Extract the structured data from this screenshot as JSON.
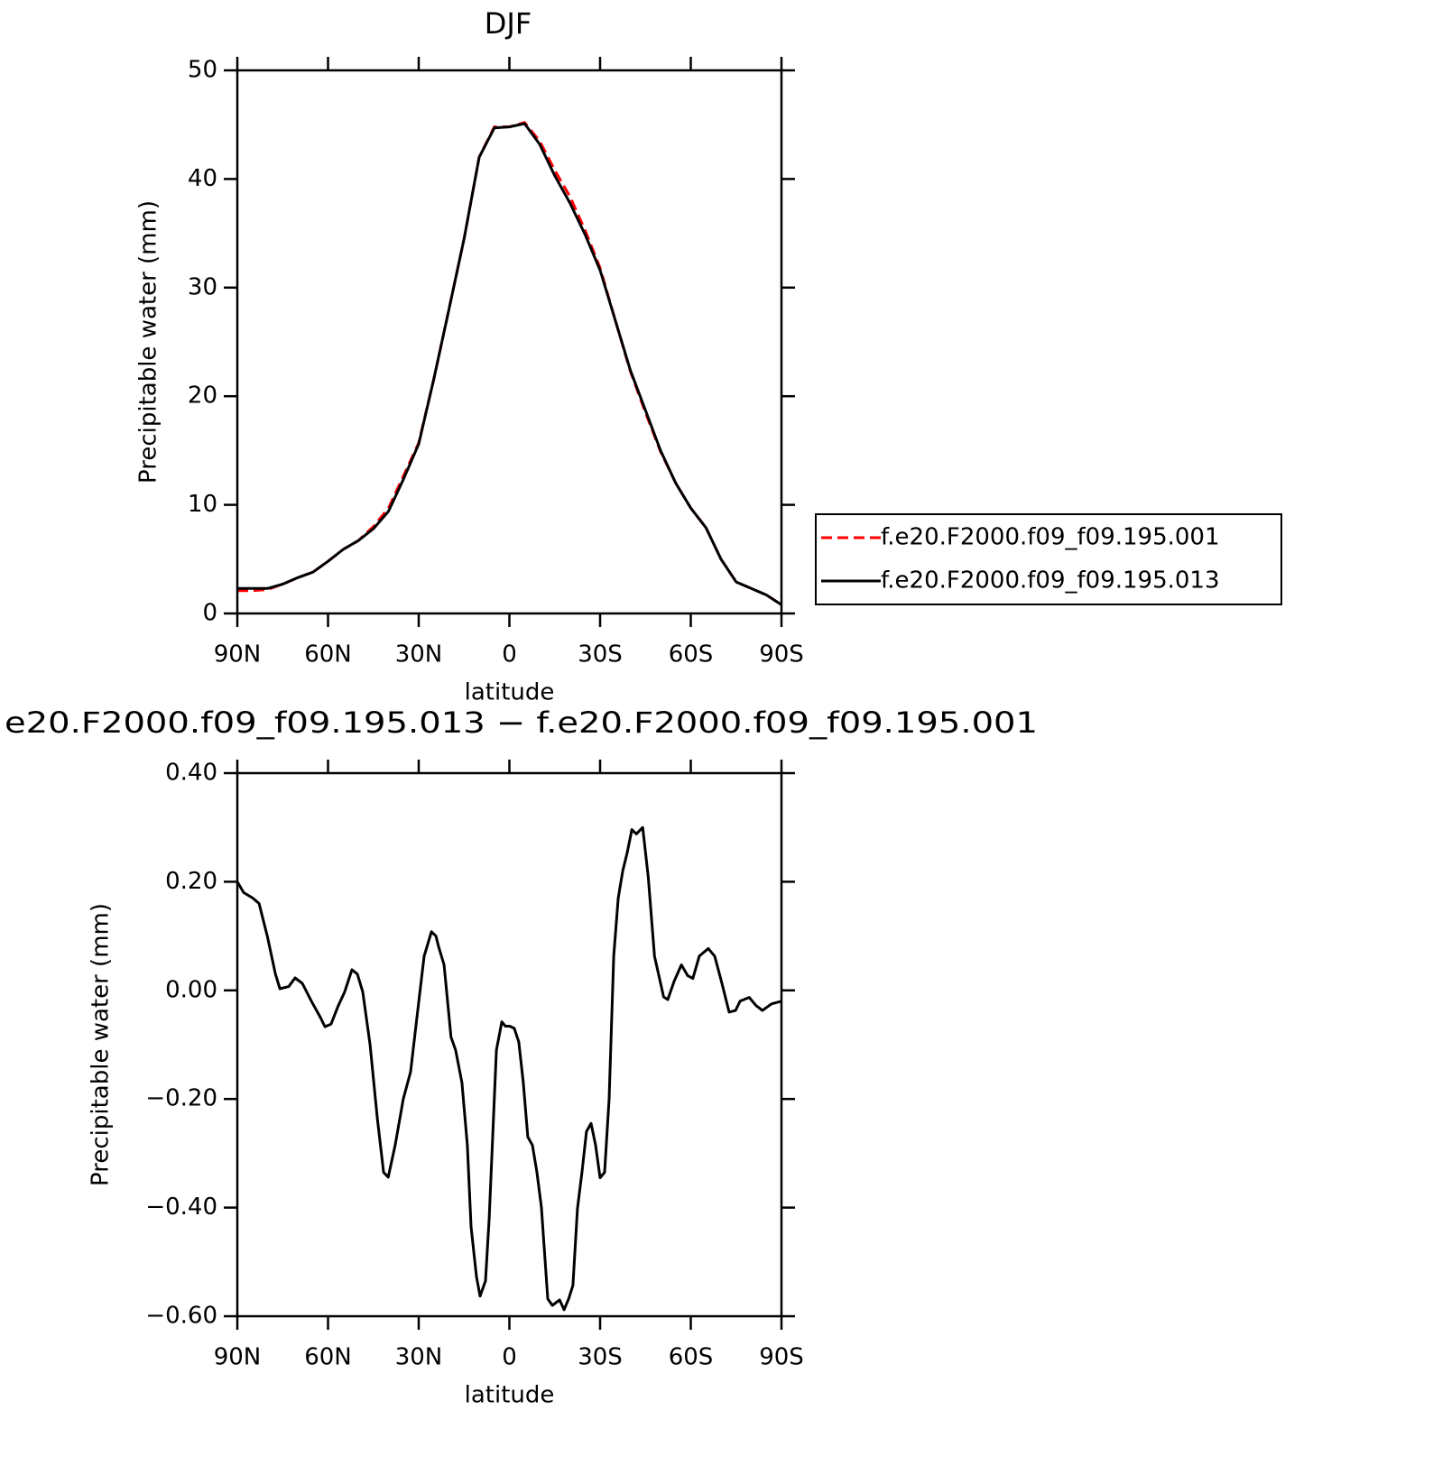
{
  "chart_data": [
    {
      "type": "line",
      "title": "DJF",
      "x_label": "latitude",
      "y_label": "Precipitable water (mm)",
      "x": [
        90,
        85,
        80,
        75,
        70,
        65,
        60,
        55,
        50,
        45,
        40,
        35,
        30,
        25,
        20,
        15,
        10,
        5,
        0,
        -5,
        -10,
        -15,
        -20,
        -25,
        -30,
        -35,
        -40,
        -45,
        -50,
        -55,
        -60,
        -65,
        -70,
        -75,
        -80,
        -85,
        -90
      ],
      "series": [
        {
          "name": "f.e20.F2000.f09_f09.195.001",
          "color": "#ff0000",
          "style": "dashed",
          "values": [
            2.1,
            2.1,
            2.2,
            2.7,
            3.3,
            3.8,
            4.8,
            5.9,
            6.7,
            8.0,
            9.7,
            12.7,
            15.7,
            21.6,
            28.0,
            34.5,
            42.0,
            44.8,
            44.8,
            45.2,
            43.5,
            40.8,
            38.4,
            35.3,
            31.8,
            27.0,
            22.3,
            18.5,
            14.9,
            12.0,
            9.7,
            7.9,
            5.0,
            2.9,
            2.3,
            1.7,
            0.8
          ]
        },
        {
          "name": "f.e20.F2000.f09_f09.195.013",
          "color": "#000000",
          "style": "solid",
          "values": [
            2.3,
            2.3,
            2.3,
            2.7,
            3.3,
            3.8,
            4.8,
            5.9,
            6.7,
            7.8,
            9.4,
            12.4,
            15.6,
            21.6,
            28.0,
            34.5,
            42.0,
            44.7,
            44.8,
            45.1,
            43.2,
            40.3,
            37.8,
            34.9,
            31.6,
            27.0,
            22.4,
            18.7,
            15.0,
            12.0,
            9.7,
            7.9,
            5.0,
            2.9,
            2.3,
            1.7,
            0.8
          ]
        }
      ],
      "xlim": [
        90,
        -90
      ],
      "xticks": [
        {
          "value": 90,
          "label": "90N"
        },
        {
          "value": 60,
          "label": "60N"
        },
        {
          "value": 30,
          "label": "30N"
        },
        0,
        {
          "value": -30,
          "label": "30S"
        },
        {
          "value": -60,
          "label": "60S"
        },
        {
          "value": -90,
          "label": "90S"
        }
      ],
      "ylim": [
        0,
        50
      ],
      "yticks": [
        0,
        10,
        20,
        30,
        40,
        50
      ],
      "legend": "right"
    },
    {
      "type": "line",
      "title": "e20.F2000.f09_f09.195.013 − f.e20.F2000.f09_f09.195.001",
      "x_label": "latitude",
      "y_label": "Precipitable water (mm)",
      "x": [
        90,
        87.9,
        84.9,
        82.8,
        80.1,
        77.4,
        75.9,
        73.0,
        70.9,
        68.5,
        65.5,
        62.5,
        61.0,
        59.0,
        56.6,
        54.5,
        52.1,
        50.3,
        48.5,
        46.1,
        43.7,
        41.6,
        40.1,
        37.8,
        35.1,
        32.7,
        30.6,
        28.2,
        25.8,
        24.3,
        23.4,
        21.6,
        19.3,
        17.8,
        15.7,
        13.9,
        12.7,
        10.9,
        9.7,
        7.9,
        6.7,
        4.3,
        2.5,
        1.3,
        -0.1,
        -1.6,
        -3.1,
        -4.6,
        -6.1,
        -7.6,
        -9.1,
        -10.6,
        -12.7,
        -14.2,
        -16.6,
        -18.1,
        -19.6,
        -21.0,
        -22.5,
        -24.0,
        -25.5,
        -27.0,
        -28.5,
        -30.0,
        -31.5,
        -33.0,
        -34.5,
        -36.0,
        -37.5,
        -39.0,
        -40.5,
        -42.0,
        -44.1,
        -45.9,
        -48.0,
        -51.0,
        -52.4,
        -54.5,
        -56.9,
        -59.0,
        -60.7,
        -62.8,
        -65.8,
        -67.9,
        -70.3,
        -72.7,
        -74.8,
        -76.3,
        -79.3,
        -81.6,
        -83.7,
        -86.7,
        -90
      ],
      "series": [
        {
          "name": "",
          "color": "#000000",
          "style": "solid",
          "values": [
            0.2,
            0.18,
            0.17,
            0.16,
            0.1,
            0.03,
            0.003,
            0.007,
            0.023,
            0.013,
            -0.02,
            -0.05,
            -0.067,
            -0.062,
            -0.028,
            -0.003,
            0.038,
            0.03,
            -0.003,
            -0.1,
            -0.235,
            -0.335,
            -0.344,
            -0.285,
            -0.2,
            -0.15,
            -0.05,
            0.063,
            0.108,
            0.1,
            0.08,
            0.047,
            -0.086,
            -0.11,
            -0.17,
            -0.285,
            -0.435,
            -0.527,
            -0.563,
            -0.535,
            -0.42,
            -0.11,
            -0.058,
            -0.066,
            -0.066,
            -0.07,
            -0.095,
            -0.17,
            -0.27,
            -0.285,
            -0.335,
            -0.4,
            -0.568,
            -0.58,
            -0.57,
            -0.588,
            -0.568,
            -0.543,
            -0.402,
            -0.335,
            -0.26,
            -0.245,
            -0.285,
            -0.345,
            -0.335,
            -0.2,
            0.063,
            0.17,
            0.22,
            0.254,
            0.296,
            0.288,
            0.3,
            0.21,
            0.063,
            -0.012,
            -0.017,
            0.017,
            0.047,
            0.027,
            0.022,
            0.063,
            0.077,
            0.063,
            0.013,
            -0.04,
            -0.037,
            -0.02,
            -0.013,
            -0.028,
            -0.037,
            -0.025,
            -0.02
          ]
        }
      ],
      "xlim": [
        90,
        -90
      ],
      "xticks": [
        {
          "value": 90,
          "label": "90N"
        },
        {
          "value": 60,
          "label": "60N"
        },
        {
          "value": 30,
          "label": "30N"
        },
        0,
        {
          "value": -30,
          "label": "30S"
        },
        {
          "value": -60,
          "label": "60S"
        },
        {
          "value": -90,
          "label": "90S"
        }
      ],
      "ylim": [
        -0.6,
        0.4
      ],
      "yticks": [
        {
          "value": -0.6,
          "label": "−0.60"
        },
        {
          "value": -0.4,
          "label": "−0.40"
        },
        {
          "value": -0.2,
          "label": "−0.20"
        },
        {
          "value": 0,
          "label": "0.00"
        },
        {
          "value": 0.2,
          "label": "0.20"
        },
        {
          "value": 0.4,
          "label": "0.40"
        }
      ]
    }
  ]
}
